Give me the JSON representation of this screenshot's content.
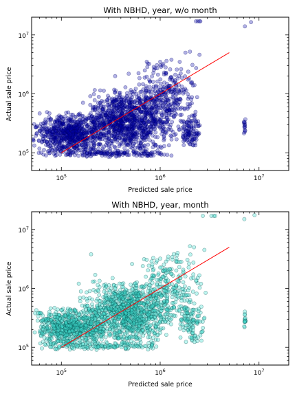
{
  "chart_data": [
    {
      "type": "scatter",
      "title": "With NBHD, year, w/o month",
      "xlabel": "Predicted sale price",
      "ylabel": "Actual sale price",
      "xscale": "log",
      "yscale": "log",
      "xlim": [
        50000,
        20000000
      ],
      "ylim": [
        50000,
        20000000
      ],
      "xticks": [
        {
          "base": "10",
          "exp": "5",
          "value": 100000
        },
        {
          "base": "10",
          "exp": "6",
          "value": 1000000
        },
        {
          "base": "10",
          "exp": "7",
          "value": 10000000
        }
      ],
      "yticks": [
        {
          "base": "10",
          "exp": "5",
          "value": 100000
        },
        {
          "base": "10",
          "exp": "6",
          "value": 1000000
        },
        {
          "base": "10",
          "exp": "7",
          "value": 10000000
        }
      ],
      "point_color": "#0000aa",
      "point_alpha": 0.3,
      "reference_line": {
        "color": "#ff0000",
        "x": [
          100000,
          5000000
        ],
        "y": [
          100000,
          5000000
        ]
      },
      "clusters": [
        {
          "x_range": [
            50000,
            300000
          ],
          "y_range": [
            90000,
            500000
          ],
          "count": 700
        },
        {
          "x_range": [
            150000,
            1500000
          ],
          "y_range": [
            90000,
            1400000
          ],
          "count": 1100
        },
        {
          "x_range": [
            600000,
            2500000
          ],
          "y_range": [
            250000,
            4000000
          ],
          "count": 260
        },
        {
          "x_range": [
            1500000,
            2600000
          ],
          "y_range": [
            110000,
            450000
          ],
          "count": 110
        },
        {
          "x_range": [
            7000000,
            7300000
          ],
          "y_range": [
            180000,
            400000
          ],
          "count": 14
        },
        {
          "x_range": [
            50000,
            1500000
          ],
          "y_range": [
            85000,
            110000
          ],
          "count": 140
        }
      ],
      "outliers": [
        {
          "x": 2400000,
          "y": 17000000
        },
        {
          "x": 2500000,
          "y": 17000000
        },
        {
          "x": 2300000,
          "y": 17000000
        },
        {
          "x": 2550000,
          "y": 17000000
        },
        {
          "x": 7200000,
          "y": 14000000
        },
        {
          "x": 8300000,
          "y": 16500000
        },
        {
          "x": 1800000,
          "y": 5000000
        },
        {
          "x": 2000000,
          "y": 5200000
        },
        {
          "x": 2500000,
          "y": 4600000
        },
        {
          "x": 1000000,
          "y": 3500000
        },
        {
          "x": 1300000,
          "y": 3800000
        },
        {
          "x": 700000,
          "y": 2500000
        },
        {
          "x": 480000,
          "y": 2200000
        },
        {
          "x": 350000,
          "y": 2000000
        }
      ]
    },
    {
      "type": "scatter",
      "title": "With NBHD, year, month",
      "xlabel": "Predicted sale price",
      "ylabel": "Actual sale price",
      "xscale": "log",
      "yscale": "log",
      "xlim": [
        50000,
        20000000
      ],
      "ylim": [
        50000,
        20000000
      ],
      "xticks": [
        {
          "base": "10",
          "exp": "5",
          "value": 100000
        },
        {
          "base": "10",
          "exp": "6",
          "value": 1000000
        },
        {
          "base": "10",
          "exp": "7",
          "value": 10000000
        }
      ],
      "yticks": [
        {
          "base": "10",
          "exp": "5",
          "value": 100000
        },
        {
          "base": "10",
          "exp": "6",
          "value": 1000000
        },
        {
          "base": "10",
          "exp": "7",
          "value": 10000000
        }
      ],
      "point_color": "#40e0d0",
      "point_alpha": 0.35,
      "reference_line": {
        "color": "#ff0000",
        "x": [
          100000,
          5000000
        ],
        "y": [
          100000,
          5000000
        ]
      },
      "clusters": [
        {
          "x_range": [
            50000,
            300000
          ],
          "y_range": [
            100000,
            500000
          ],
          "count": 650
        },
        {
          "x_range": [
            150000,
            1400000
          ],
          "y_range": [
            100000,
            1400000
          ],
          "count": 1000
        },
        {
          "x_range": [
            500000,
            3000000
          ],
          "y_range": [
            200000,
            4500000
          ],
          "count": 280
        },
        {
          "x_range": [
            1500000,
            2800000
          ],
          "y_range": [
            110000,
            500000
          ],
          "count": 90
        },
        {
          "x_range": [
            7000000,
            7400000
          ],
          "y_range": [
            160000,
            450000
          ],
          "count": 14
        },
        {
          "x_range": [
            50000,
            1500000
          ],
          "y_range": [
            90000,
            120000
          ],
          "count": 120
        }
      ],
      "outliers": [
        {
          "x": 2700000,
          "y": 17000000
        },
        {
          "x": 3300000,
          "y": 17000000
        },
        {
          "x": 3500000,
          "y": 17000000
        },
        {
          "x": 3600000,
          "y": 17000000
        },
        {
          "x": 7100000,
          "y": 15000000
        },
        {
          "x": 9000000,
          "y": 17500000
        },
        {
          "x": 2000000,
          "y": 5200000
        },
        {
          "x": 2200000,
          "y": 5000000
        },
        {
          "x": 2800000,
          "y": 4500000
        },
        {
          "x": 1500000,
          "y": 4000000
        },
        {
          "x": 1000000,
          "y": 3200000
        },
        {
          "x": 200000,
          "y": 3800000
        },
        {
          "x": 220000,
          "y": 1700000
        },
        {
          "x": 330000,
          "y": 1500000
        },
        {
          "x": 150000,
          "y": 1200000
        }
      ]
    }
  ]
}
